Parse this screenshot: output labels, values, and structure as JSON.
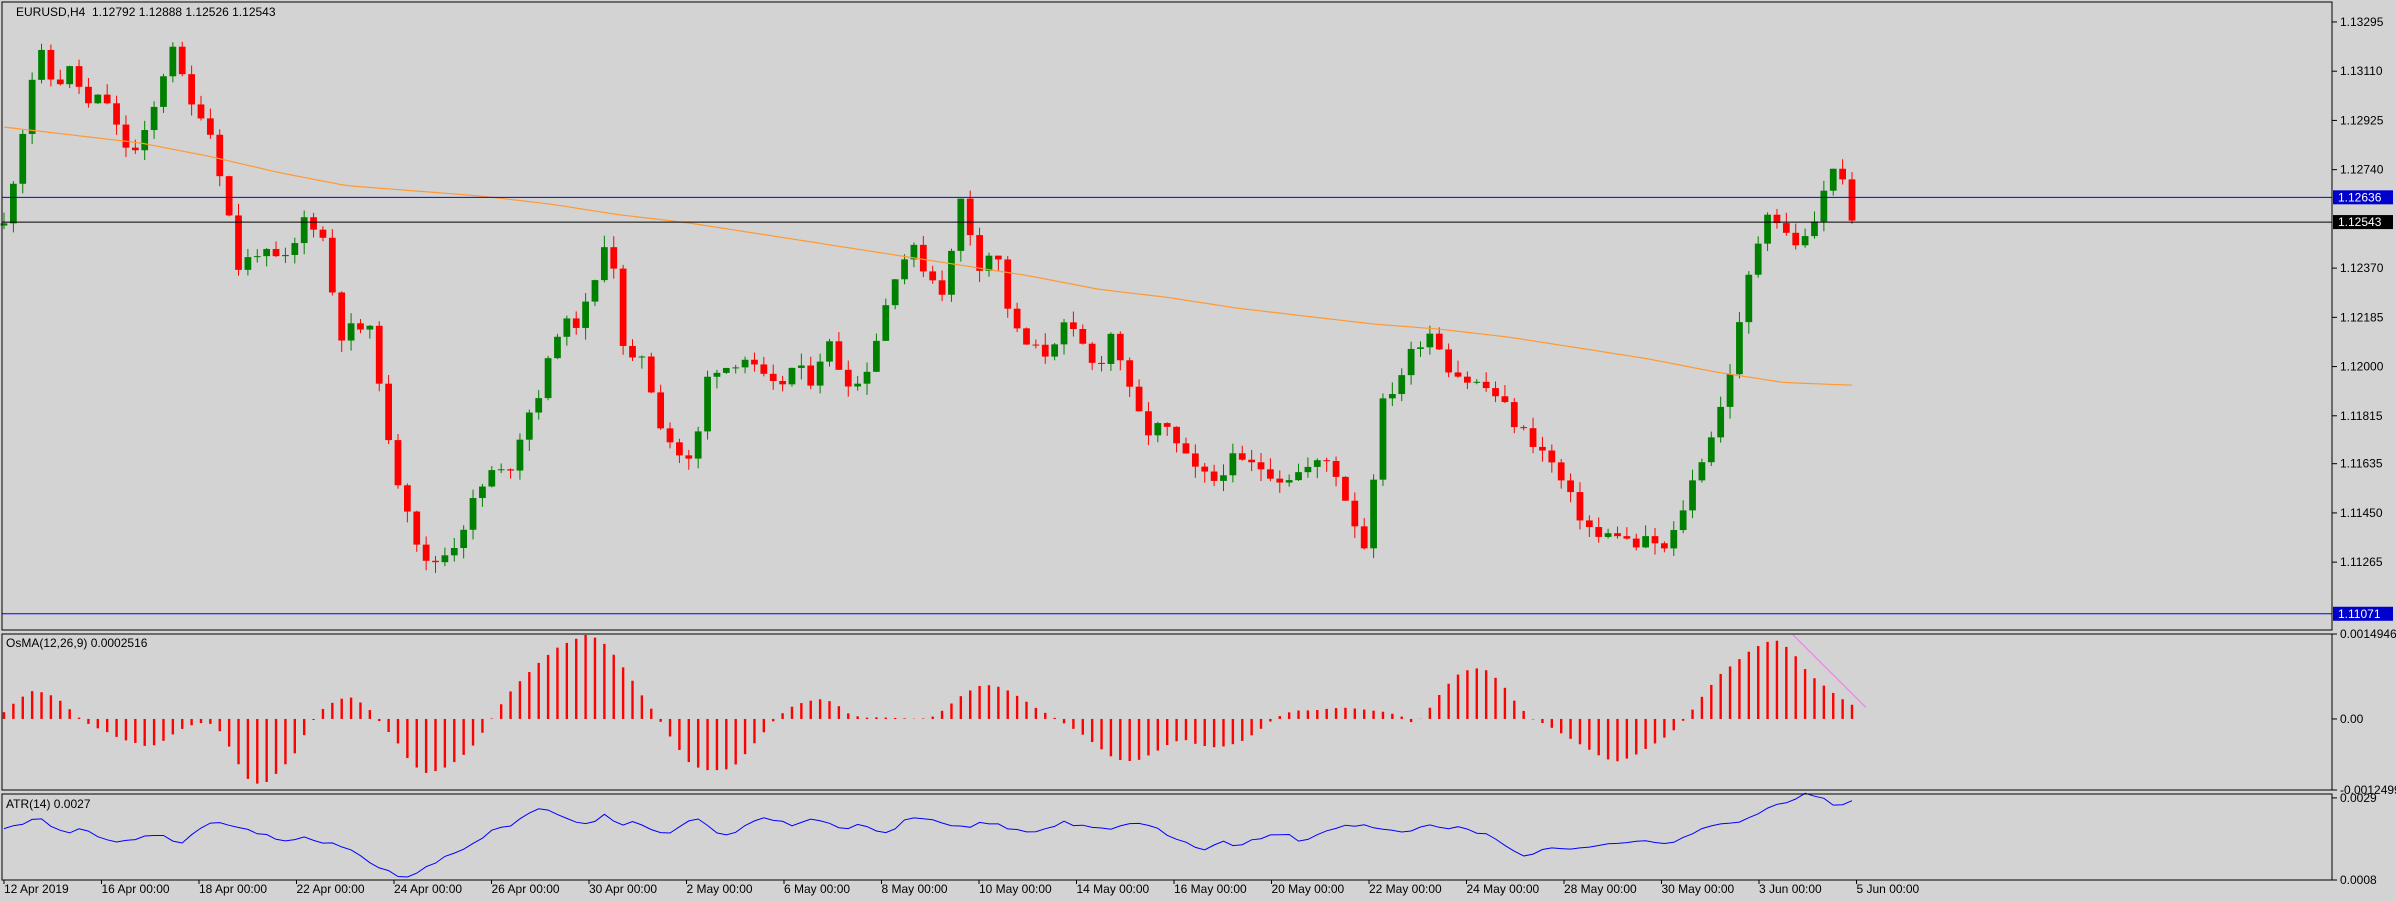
{
  "header": {
    "symbol": "EURUSD,H4",
    "ohlc": "1.12792 1.12888 1.12526 1.12543"
  },
  "colors": {
    "background": "#d3d3d3",
    "bull": "#008000",
    "bear": "#ff0000",
    "ma": "#ff9933",
    "resistance": "#0000ff",
    "current_price": "#000000",
    "osma": "#ff0000",
    "divergence": "#ee82ee",
    "atr": "#0000ff"
  },
  "chart_data": [
    {
      "type": "candlestick",
      "title": "EURUSD,H4",
      "y_ticks": [
        "1.13295",
        "1.13110",
        "1.12925",
        "1.12740",
        "1.12370",
        "1.12185",
        "1.12000",
        "1.11815",
        "1.11635",
        "1.11450",
        "1.11265"
      ],
      "ylim": [
        1.1101,
        1.1337
      ],
      "x_ticks": [
        "12 Apr 2019",
        "16 Apr 00:00",
        "18 Apr 00:00",
        "22 Apr 00:00",
        "24 Apr 00:00",
        "26 Apr 00:00",
        "30 Apr 00:00",
        "2 May 00:00",
        "6 May 00:00",
        "8 May 00:00",
        "10 May 00:00",
        "14 May 00:00",
        "16 May 00:00",
        "20 May 00:00",
        "22 May 00:00",
        "24 May 00:00",
        "28 May 00:00",
        "30 May 00:00",
        "3 Jun 00:00",
        "5 Jun 00:00"
      ],
      "price_path": [
        1.1253,
        1.1285,
        1.132,
        1.1305,
        1.1312,
        1.1298,
        1.1302,
        1.1284,
        1.128,
        1.1298,
        1.1323,
        1.1298,
        1.1295,
        1.127,
        1.1236,
        1.1244,
        1.124,
        1.124,
        1.1258,
        1.1248,
        1.1212,
        1.1215,
        1.1212,
        1.1165,
        1.1148,
        1.1125,
        1.1128,
        1.1135,
        1.115,
        1.116,
        1.116,
        1.118,
        1.1192,
        1.1215,
        1.1216,
        1.1226,
        1.1255,
        1.1198,
        1.1205,
        1.118,
        1.1168,
        1.1163,
        1.12,
        1.12,
        1.1204,
        1.1196,
        1.1191,
        1.12,
        1.1195,
        1.121,
        1.1196,
        1.1193,
        1.1212,
        1.1235,
        1.1245,
        1.1235,
        1.1228,
        1.1264,
        1.1238,
        1.1245,
        1.1215,
        1.1207,
        1.1205,
        1.1215,
        1.121,
        1.1198,
        1.1214,
        1.119,
        1.1175,
        1.1178,
        1.1168,
        1.116,
        1.1157,
        1.1165,
        1.1163,
        1.1162,
        1.1158,
        1.116,
        1.1163,
        1.1165,
        1.1148,
        1.1132,
        1.1185,
        1.1195,
        1.1208,
        1.1214,
        1.12,
        1.1195,
        1.1193,
        1.1188,
        1.1178,
        1.1172,
        1.1165,
        1.1153,
        1.1142,
        1.1135,
        1.1138,
        1.1132,
        1.1135,
        1.113,
        1.1148,
        1.1165,
        1.118,
        1.1205,
        1.1238,
        1.126,
        1.125,
        1.1245,
        1.1258,
        1.1279,
        1.1254
      ],
      "ma_path": [
        1.129,
        1.1287,
        1.1284,
        1.1279,
        1.1273,
        1.1268,
        1.1266,
        1.1264,
        1.1261,
        1.1257,
        1.1254,
        1.125,
        1.1246,
        1.1242,
        1.1238,
        1.1234,
        1.1229,
        1.1226,
        1.1222,
        1.1219,
        1.1216,
        1.1214,
        1.1211,
        1.1207,
        1.1203,
        1.1198,
        1.1194,
        1.1193
      ],
      "resistance": {
        "value": 1.12636,
        "label": "1.12636"
      },
      "support": {
        "value": 1.11071,
        "label": "1.11071"
      },
      "current": {
        "value": 1.12543,
        "label": "1.12543"
      }
    },
    {
      "type": "bar",
      "title": "OsMA(12,26,9) 0.0002516",
      "y_ticks": [
        "0.0014946",
        "0.00",
        "-0.0012499"
      ],
      "ylim": [
        -0.00125,
        0.001495
      ],
      "values_path": [
        0.00012,
        0.00035,
        0.0005,
        0.00045,
        0.0003,
        5e-05,
        -0.00012,
        -0.00022,
        -0.00035,
        -0.00042,
        -0.0005,
        -0.00038,
        -0.0002,
        -0.0001,
        -5e-05,
        -0.00025,
        -0.00075,
        -0.00115,
        -0.00112,
        -0.0009,
        -0.0006,
        -0.0001,
        0.0002,
        0.00035,
        0.00038,
        0.0002,
        -0.0001,
        -0.0004,
        -0.0008,
        -0.00095,
        -0.0009,
        -0.00075,
        -0.00055,
        -0.0002,
        0.0002,
        0.00055,
        0.0008,
        0.00105,
        0.00125,
        0.00138,
        0.00148,
        0.0014,
        0.0011,
        0.00075,
        0.00035,
        0.0,
        -0.0004,
        -0.00075,
        -0.0009,
        -0.0009,
        -0.00088,
        -0.0006,
        -0.0003,
        0.0,
        0.0002,
        0.0003,
        0.00035,
        0.0003,
        0.0001,
        2e-05,
        3e-05,
        2e-05,
        1e-05,
        0.0,
        5e-05,
        0.00025,
        0.00045,
        0.00058,
        0.0006,
        0.0005,
        0.00035,
        0.00018,
        5e-05,
        -0.0001,
        -0.00025,
        -0.00045,
        -0.00065,
        -0.00075,
        -0.00072,
        -0.0006,
        -0.00045,
        -0.00035,
        -0.00045,
        -0.0005,
        -0.00048,
        -0.0004,
        -0.00025,
        -5e-05,
        0.0001,
        0.00015,
        0.00015,
        0.00018,
        0.0002,
        0.00018,
        0.00015,
        0.00012,
        5e-05,
        -0.0001,
        0.0002,
        0.00055,
        0.0008,
        0.0009,
        0.00085,
        0.0006,
        0.00025,
        0.0,
        -0.0001,
        -0.00025,
        -0.0004,
        -0.00055,
        -0.0007,
        -0.00075,
        -0.00065,
        -0.0005,
        -0.00035,
        -0.00015,
        0.00015,
        0.0005,
        0.0008,
        0.001,
        0.0012,
        0.00135,
        0.00138,
        0.00115,
        0.0008,
        0.0006,
        0.0004,
        0.00025
      ]
    },
    {
      "type": "line",
      "title": "ATR(14) 0.0027",
      "y_ticks": [
        "0.0029",
        "0.0008"
      ],
      "ylim": [
        0.0008,
        0.003
      ],
      "values_path": [
        0.0021,
        0.0022,
        0.0024,
        0.0022,
        0.002,
        0.0021,
        0.0019,
        0.0018,
        0.0018,
        0.0019,
        0.002,
        0.0017,
        0.002,
        0.0023,
        0.0022,
        0.0021,
        0.002,
        0.0019,
        0.0018,
        0.0019,
        0.0018,
        0.0017,
        0.0016,
        0.0013,
        0.0011,
        0.0009,
        0.0009,
        0.0012,
        0.0014,
        0.0016,
        0.0018,
        0.0021,
        0.0022,
        0.0025,
        0.0026,
        0.0025,
        0.0023,
        0.0022,
        0.0025,
        0.0022,
        0.0023,
        0.0021,
        0.002,
        0.0022,
        0.0024,
        0.002,
        0.0019,
        0.0022,
        0.0024,
        0.0023,
        0.0022,
        0.0024,
        0.0023,
        0.0021,
        0.0022,
        0.0021,
        0.002,
        0.0023,
        0.0024,
        0.0023,
        0.0022,
        0.0021,
        0.0023,
        0.0022,
        0.0021,
        0.002,
        0.0021,
        0.0023,
        0.0022,
        0.0021,
        0.0021,
        0.0022,
        0.0023,
        0.0021,
        0.0019,
        0.0017,
        0.0016,
        0.0018,
        0.0017,
        0.0018,
        0.0019,
        0.002,
        0.0018,
        0.0019,
        0.0021,
        0.0022,
        0.0022,
        0.0021,
        0.0021,
        0.002,
        0.0022,
        0.0021,
        0.0022,
        0.002,
        0.002,
        0.0017,
        0.0014,
        0.0015,
        0.0016,
        0.0016,
        0.0016,
        0.0017,
        0.0017,
        0.0018,
        0.0018,
        0.0017,
        0.0018,
        0.002,
        0.0022,
        0.0022,
        0.0023,
        0.0025,
        0.0027,
        0.0028,
        0.003,
        0.0029,
        0.0027,
        0.0028
      ]
    }
  ]
}
